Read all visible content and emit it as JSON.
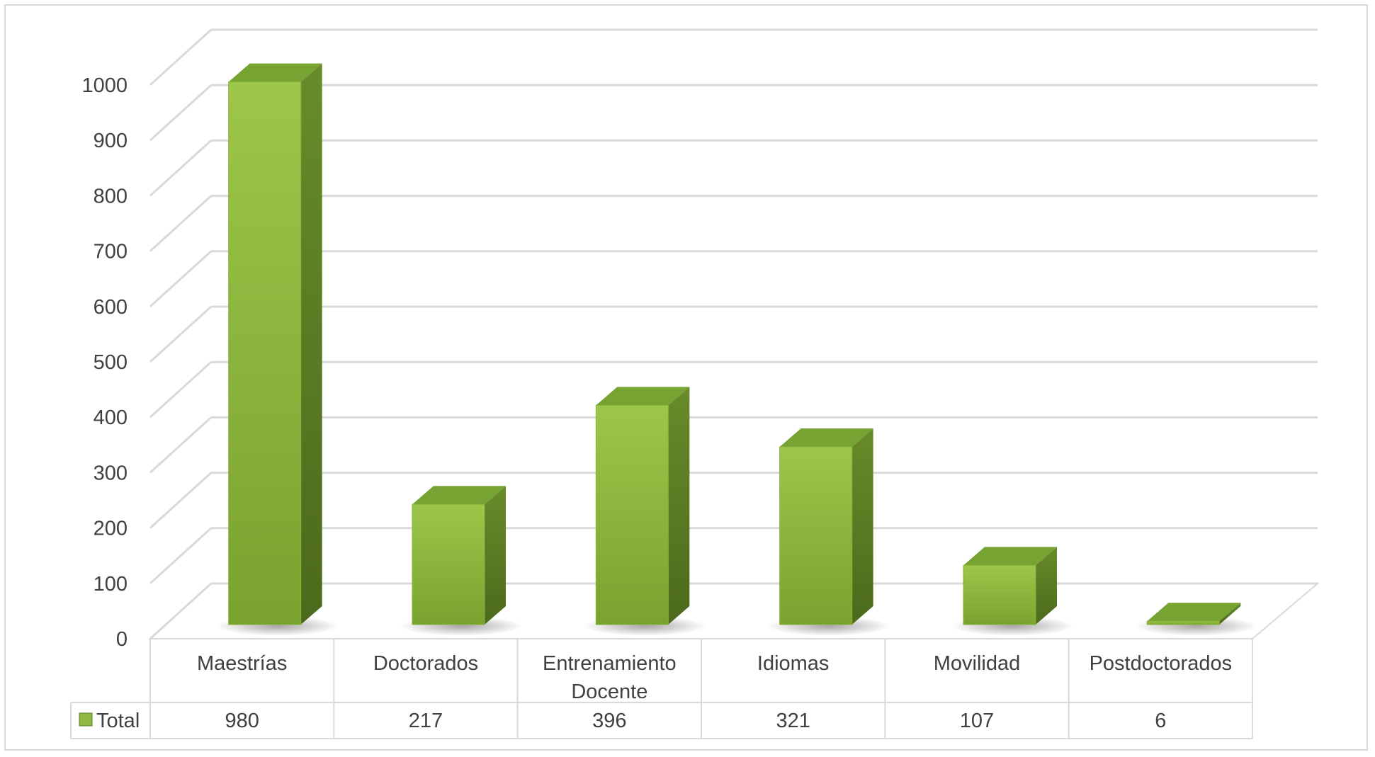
{
  "chart_data": {
    "type": "bar",
    "title": "",
    "xlabel": "",
    "ylabel": "",
    "ylim": [
      0,
      1000
    ],
    "yticks": [
      "0",
      "100",
      "200",
      "300",
      "400",
      "500",
      "600",
      "700",
      "800",
      "900",
      "1000"
    ],
    "categories": [
      [
        "Maestrías"
      ],
      [
        "Doctorados"
      ],
      [
        "Entrenamiento",
        "Docente"
      ],
      [
        "Idiomas"
      ],
      [
        "Movilidad"
      ],
      [
        "Postdoctorados"
      ]
    ],
    "series": [
      {
        "name": "Total",
        "values": [
          980,
          217,
          396,
          321,
          107,
          6
        ],
        "value_labels": [
          "980",
          "217",
          "396",
          "321",
          "107",
          "6"
        ]
      }
    ],
    "grid": true,
    "data_table": true,
    "style": "3d-column",
    "colors": {
      "bar_front": "#8fb93f",
      "bar_side": "#5d7e26",
      "bar_top": "#76a332",
      "grid": "#d9d9d9",
      "text": "#404040"
    }
  }
}
